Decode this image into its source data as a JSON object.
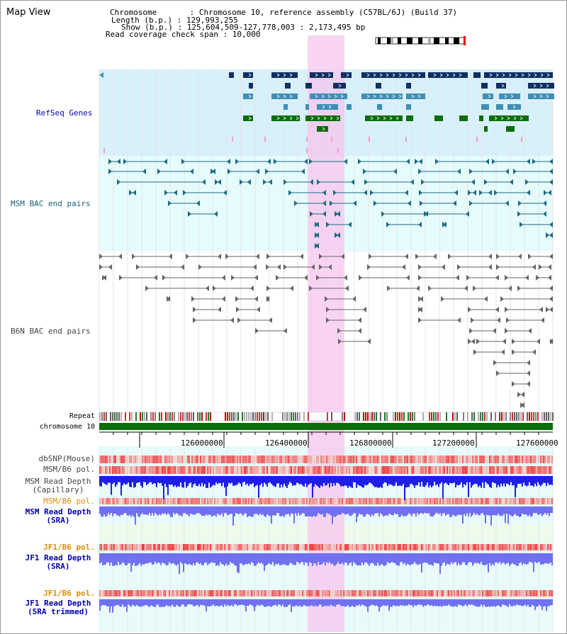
{
  "title": "Map View",
  "info": {
    "chromosome": "Chromosome       : Chromosome 10, reference assembly (C57BL/6J) (Build 37)",
    "length": "Length (b.p.) : 129,993,255",
    "show": "Show (b.p.) : 125,604,509-127,778,003 : 2,173,495 bp",
    "coverage": "Read coverage check span : 10,000"
  },
  "tracks": {
    "refseq": "RefSeq Genes",
    "msm_bac": "MSM BAC end pairs",
    "b6n_bac": "B6N BAC end pairs",
    "repeat": "Repeat",
    "chromosome": "chromosome 10",
    "dbsnp": "dbSNP(Mouse)",
    "msm_pol": "MSM/B6 pol.",
    "msm_depth_cap_1": "MSM Read Depth",
    "msm_depth_cap_2": "(Capillary)",
    "msm_pol2": "MSM/B6 pol.",
    "msm_depth_sra_1": "MSM Read Depth",
    "msm_depth_sra_2": "(SRA)",
    "jf1_pol": "JF1/B6 pol.",
    "jf1_depth_1": "JF1 Read Depth",
    "jf1_depth_2": "(SRA)",
    "jf1_pol2": "JF1/B6 pol.",
    "jf1_trim_1": "JF1 Read Depth",
    "jf1_trim_2": "(SRA trimmed)"
  },
  "axis": {
    "ticks": [
      "126000000",
      "126400000",
      "126800000",
      "127200000",
      "127600000"
    ],
    "tick_values": [
      126000000,
      126400000,
      126800000,
      127200000,
      127600000
    ],
    "range": [
      125604509,
      127778003
    ]
  },
  "colors": {
    "refseq_bg": "#d8f0fa",
    "bac_bg": "#e6fbfb",
    "highlight": "#f7c6ee",
    "navy": "#0f2f63",
    "steel": "#3f8fb5",
    "green": "#0b6e0b",
    "msm_bac": "#1c6b86",
    "b6n_bac": "#666666",
    "chrom_bar": "#0a6e0a",
    "depth_dark": "#1e1ee6",
    "depth_light": "#7070f0",
    "snp": "#f06050"
  }
}
